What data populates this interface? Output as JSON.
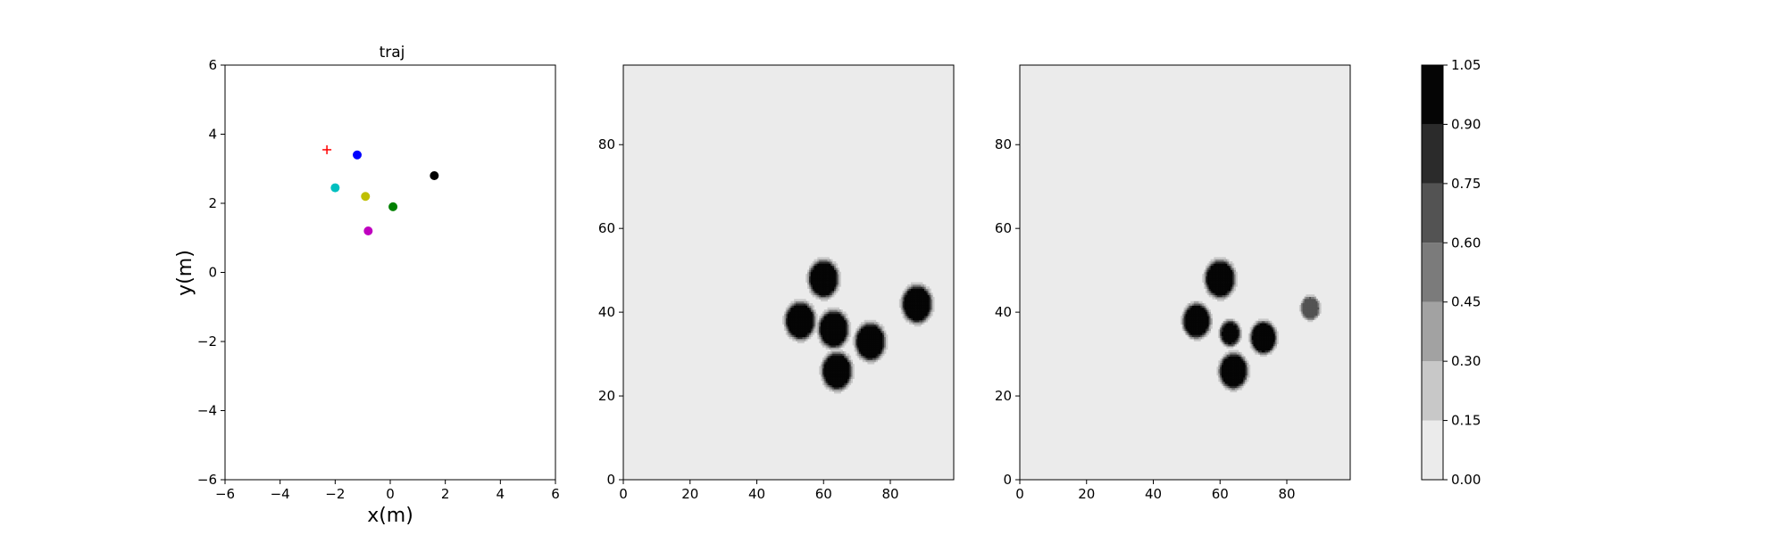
{
  "chart_data": [
    {
      "type": "scatter",
      "title": "traj",
      "xlabel": "x(m)",
      "ylabel": "y(m)",
      "xlim": [
        -6,
        6
      ],
      "ylim": [
        -6,
        6
      ],
      "xticks": [
        "−6",
        "−4",
        "−2",
        "0",
        "2",
        "4",
        "6"
      ],
      "yticks": [
        "−6",
        "−4",
        "−2",
        "0",
        "2",
        "4",
        "6"
      ],
      "grid": false,
      "points": [
        {
          "x": -2.3,
          "y": 3.55,
          "color": "#ff0000",
          "marker": "plus"
        },
        {
          "x": -1.2,
          "y": 3.4,
          "color": "#0000ff",
          "marker": "circle"
        },
        {
          "x": -2.0,
          "y": 2.45,
          "color": "#00bfbf",
          "marker": "circle"
        },
        {
          "x": -0.9,
          "y": 2.2,
          "color": "#bfbf00",
          "marker": "circle"
        },
        {
          "x": 0.1,
          "y": 1.9,
          "color": "#008000",
          "marker": "circle"
        },
        {
          "x": 1.6,
          "y": 2.8,
          "color": "#000000",
          "marker": "circle"
        },
        {
          "x": -0.8,
          "y": 1.2,
          "color": "#bf00bf",
          "marker": "circle"
        }
      ]
    },
    {
      "type": "heatmap",
      "xlim": [
        0,
        99
      ],
      "ylim": [
        0,
        99
      ],
      "xticks": [
        "0",
        "20",
        "40",
        "60",
        "80"
      ],
      "yticks": [
        "0",
        "20",
        "40",
        "60",
        "80"
      ],
      "background_value": 0.1,
      "blobs": [
        {
          "x": 60,
          "y": 48,
          "r": 3.5,
          "value": 1.0
        },
        {
          "x": 53,
          "y": 38,
          "r": 3.5,
          "value": 1.0
        },
        {
          "x": 63,
          "y": 36,
          "r": 3.5,
          "value": 1.0
        },
        {
          "x": 74,
          "y": 33,
          "r": 3.5,
          "value": 1.0
        },
        {
          "x": 64,
          "y": 26,
          "r": 3.5,
          "value": 1.0
        },
        {
          "x": 88,
          "y": 42,
          "r": 3.5,
          "value": 1.0
        }
      ]
    },
    {
      "type": "heatmap",
      "xlim": [
        0,
        99
      ],
      "ylim": [
        0,
        99
      ],
      "xticks": [
        "0",
        "20",
        "40",
        "60",
        "80"
      ],
      "yticks": [
        "0",
        "20",
        "40",
        "60",
        "80"
      ],
      "background_value": 0.1,
      "blobs": [
        {
          "x": 60,
          "y": 48,
          "r": 3.5,
          "value": 1.0
        },
        {
          "x": 53,
          "y": 38,
          "r": 3.2,
          "value": 1.0
        },
        {
          "x": 63,
          "y": 35,
          "r": 2.4,
          "value": 0.9
        },
        {
          "x": 73,
          "y": 34,
          "r": 3.0,
          "value": 1.0
        },
        {
          "x": 64,
          "y": 26,
          "r": 3.3,
          "value": 1.0
        },
        {
          "x": 87,
          "y": 41,
          "r": 2.2,
          "value": 0.7
        }
      ]
    }
  ],
  "colorbar": {
    "levels": [
      0.0,
      0.15,
      0.3,
      0.45,
      0.6,
      0.75,
      0.9,
      1.05
    ],
    "labels": [
      "0.00",
      "0.15",
      "0.30",
      "0.45",
      "0.60",
      "0.75",
      "0.90",
      "1.05"
    ],
    "colors": [
      "#ebebeb",
      "#c8c8c8",
      "#a2a2a2",
      "#7b7b7b",
      "#535353",
      "#2b2b2b",
      "#050505"
    ]
  }
}
